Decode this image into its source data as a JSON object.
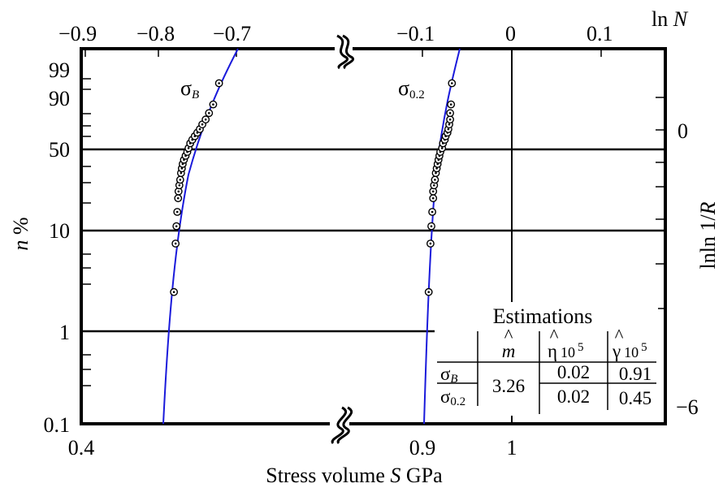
{
  "chart_data": {
    "type": "scatter",
    "title": "",
    "xlabel": {
      "pre": "Stress  volume ",
      "var": "S",
      "post": "  GPa"
    },
    "ylabel": {
      "var": "n",
      "post": "  %"
    },
    "top_label": {
      "pre": "ln ",
      "var": "N"
    },
    "right_label": {
      "pre": "lnln 1/",
      "var": "R"
    },
    "bottom_ticks": [
      "0.4",
      "0.9",
      "1"
    ],
    "top_ticks": [
      "−0.9",
      "−0.8",
      "−0.7",
      "−0.1",
      "0",
      "0.1"
    ],
    "left_ticks": [
      "99",
      "90",
      "50",
      "10",
      "1",
      "0.1"
    ],
    "right_ticks": [
      "0",
      "−6"
    ],
    "series": [
      {
        "label": "σ",
        "subscript": "B",
        "points": [
          [
            0.622,
            0.025
          ],
          [
            0.626,
            0.075
          ],
          [
            0.628,
            0.11
          ],
          [
            0.63,
            0.15
          ],
          [
            0.632,
            0.2
          ],
          [
            0.633,
            0.23
          ],
          [
            0.635,
            0.26
          ],
          [
            0.637,
            0.29
          ],
          [
            0.639,
            0.33
          ],
          [
            0.641,
            0.36
          ],
          [
            0.643,
            0.39
          ],
          [
            0.646,
            0.42
          ],
          [
            0.65,
            0.45
          ],
          [
            0.654,
            0.48
          ],
          [
            0.657,
            0.51
          ],
          [
            0.661,
            0.55
          ],
          [
            0.666,
            0.58
          ],
          [
            0.672,
            0.61
          ],
          [
            0.678,
            0.64
          ],
          [
            0.684,
            0.67
          ],
          [
            0.69,
            0.71
          ],
          [
            0.698,
            0.75
          ],
          [
            0.706,
            0.8
          ],
          [
            0.716,
            0.86
          ],
          [
            0.73,
            0.96
          ]
        ]
      },
      {
        "label": "σ",
        "subscript": "0.2",
        "points": [
          [
            0.907,
            0.025
          ],
          [
            0.909,
            0.075
          ],
          [
            0.91,
            0.11
          ],
          [
            0.911,
            0.15
          ],
          [
            0.912,
            0.2
          ],
          [
            0.912,
            0.23
          ],
          [
            0.913,
            0.26
          ],
          [
            0.914,
            0.29
          ],
          [
            0.915,
            0.33
          ],
          [
            0.916,
            0.36
          ],
          [
            0.917,
            0.39
          ],
          [
            0.918,
            0.42
          ],
          [
            0.919,
            0.45
          ],
          [
            0.92,
            0.48
          ],
          [
            0.922,
            0.51
          ],
          [
            0.923,
            0.55
          ],
          [
            0.925,
            0.58
          ],
          [
            0.926,
            0.61
          ],
          [
            0.928,
            0.64
          ],
          [
            0.929,
            0.67
          ],
          [
            0.93,
            0.71
          ],
          [
            0.931,
            0.75
          ],
          [
            0.931,
            0.8
          ],
          [
            0.932,
            0.86
          ],
          [
            0.933,
            0.96
          ]
        ]
      }
    ],
    "legend_table": {
      "title": "Estimations",
      "col_m": "m",
      "col_eta": "η",
      "col_gamma": "γ",
      "col_unit": "10",
      "col_exp": "5",
      "row_b": {
        "sym": "σ",
        "sub": "B",
        "eta": "0.02",
        "gamma": "0.91"
      },
      "row_02": {
        "sym": "σ",
        "sub": "0.2",
        "eta": "0.02",
        "gamma": "0.45"
      },
      "m_value": "3.26"
    }
  }
}
